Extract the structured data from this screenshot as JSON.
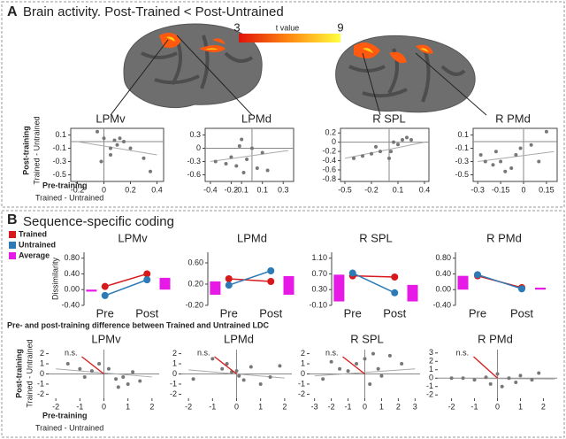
{
  "panel_a": {
    "label": "A",
    "title": "Brain activity. Post-Trained < Post-Untrained",
    "colorbar": {
      "min": 3,
      "max": 9,
      "label": "t value",
      "colors": [
        "#e0120a",
        "#ff8a10",
        "#ffff40"
      ]
    },
    "y_label": [
      "Post-training",
      "Trained - Untrained"
    ],
    "x_label": [
      "Pre-training",
      "Trained - Untrained"
    ]
  },
  "panel_b": {
    "label": "B",
    "title": "Sequence-specific coding",
    "subtitle": "Pre- and post-training difference between Trained and Untrained LDC",
    "y_label": [
      "Post-training",
      "Trained - Untrained"
    ],
    "x_label": [
      "Pre-training",
      "Trained - Untrained"
    ]
  },
  "chart_data": [
    {
      "type": "scatter",
      "title": "LPMv",
      "color": "#777777",
      "x": [
        -0.05,
        0,
        0.05,
        0.1,
        0.12,
        0.15,
        0.2,
        0.05,
        -0.02,
        0.08,
        0.3,
        0.35
      ],
      "values": [
        0.15,
        0.05,
        -0.1,
        -0.05,
        0.05,
        0,
        -0.1,
        -0.2,
        -0.3,
        0.02,
        -0.25,
        -0.45
      ],
      "fit_line": {
        "x": [
          -0.2,
          0.4
        ],
        "values": [
          0,
          -0.2
        ],
        "color": "#aaaaaa"
      },
      "xlim": [
        -0.25,
        0.45
      ],
      "ylim": [
        -0.6,
        0.2
      ],
      "xticks": [
        -0.2,
        0,
        0.2,
        0.4
      ],
      "yticks": [
        0.1,
        -0.1,
        -0.3,
        -0.5
      ]
    },
    {
      "type": "scatter",
      "title": "LPMd",
      "color": "#777777",
      "x": [
        -0.35,
        -0.25,
        -0.2,
        -0.15,
        -0.1,
        -0.08,
        -0.05,
        0,
        0.05,
        0.1,
        0.15,
        -0.12
      ],
      "values": [
        -0.3,
        -0.35,
        -0.2,
        -0.4,
        0.2,
        -0.55,
        -0.25,
        0,
        -0.45,
        -0.1,
        -0.5,
        0.05
      ],
      "fit_line": {
        "x": [
          -0.4,
          0.35
        ],
        "values": [
          -0.3,
          -0.05
        ],
        "color": "#aaaaaa"
      },
      "xlim": [
        -0.45,
        0.4
      ],
      "ylim": [
        -0.75,
        0.45
      ],
      "xticks": [
        -0.4,
        -0.2,
        -0.1,
        0.1,
        0.3
      ],
      "yticks": [
        0.3,
        0,
        -0.3,
        -0.6
      ]
    },
    {
      "type": "scatter",
      "title": "R SPL",
      "color": "#777777",
      "x": [
        -0.4,
        -0.3,
        -0.2,
        -0.15,
        -0.1,
        0,
        0.02,
        0.05,
        0.1,
        0.15,
        0.2,
        0.25
      ],
      "values": [
        -0.35,
        -0.3,
        -0.25,
        -0.1,
        -0.2,
        -0.35,
        -0.2,
        0,
        -0.05,
        0.05,
        0.1,
        0.05
      ],
      "fit_line": {
        "x": [
          -0.5,
          0.4
        ],
        "values": [
          -0.35,
          0
        ],
        "color": "#aaaaaa"
      },
      "xlim": [
        -0.55,
        0.45
      ],
      "ylim": [
        -0.85,
        0.3
      ],
      "xticks": [
        -0.5,
        -0.2,
        0.1,
        0.4
      ],
      "yticks": [
        0.2,
        0,
        -0.2,
        -0.4,
        -0.6,
        -0.8
      ]
    },
    {
      "type": "scatter",
      "title": "R PMd",
      "color": "#777777",
      "x": [
        -0.28,
        -0.25,
        -0.2,
        -0.18,
        -0.12,
        -0.08,
        -0.05,
        -0.02,
        0.05,
        0.1,
        0.15,
        -0.15
      ],
      "values": [
        -0.2,
        -0.3,
        -0.35,
        -0.15,
        -0.45,
        -0.4,
        -0.2,
        -0.1,
        -0.05,
        -0.3,
        0.15,
        -0.3
      ],
      "fit_line": {
        "x": [
          -0.3,
          0.2
        ],
        "values": [
          -0.3,
          -0.15
        ],
        "color": "#aaaaaa"
      },
      "xlim": [
        -0.33,
        0.22
      ],
      "ylim": [
        -0.6,
        0.2
      ],
      "xticks": [
        -0.3,
        -0.15,
        0,
        0.15
      ],
      "yticks": [
        0.1,
        -0.1,
        -0.3,
        -0.5
      ]
    },
    {
      "type": "line",
      "title": "LPMv",
      "y_label": "Dissimilarity",
      "categories": [
        "Pre",
        "Post"
      ],
      "series": [
        {
          "name": "Trained",
          "color": "#d7191c",
          "values": [
            0.08,
            0.4
          ]
        },
        {
          "name": "Untrained",
          "color": "#2c7bb6",
          "values": [
            -0.15,
            0.25
          ]
        },
        {
          "name": "Average",
          "type": "bar",
          "color": "#e619e6",
          "values": [
            -0.05,
            0.3
          ]
        }
      ],
      "ylim": [
        -0.4,
        0.95
      ],
      "yticks": [
        {
          "value": 0.8,
          "label": "0.80"
        },
        {
          "value": 0.4,
          "label": "0.40"
        },
        {
          "value": 0,
          "label": "0.00"
        },
        {
          "value": -0.4,
          "label": "-0.40"
        }
      ]
    },
    {
      "type": "line",
      "title": "LPMd",
      "categories": [
        "Pre",
        "Post"
      ],
      "series": [
        {
          "color": "#d7191c",
          "values": [
            0.3,
            0.25
          ]
        },
        {
          "color": "#2c7bb6",
          "values": [
            0.18,
            0.45
          ]
        },
        {
          "type": "bar",
          "color": "#e619e6",
          "values": [
            0.25,
            0.35
          ]
        }
      ],
      "ylim": [
        -0.2,
        0.8
      ],
      "yticks": [
        {
          "value": 0.6,
          "label": "0.60"
        },
        {
          "value": 0.2,
          "label": "0.20"
        },
        {
          "value": -0.2,
          "label": "-0.20"
        }
      ]
    },
    {
      "type": "line",
      "title": "R SPL",
      "categories": [
        "Pre",
        "Post"
      ],
      "series": [
        {
          "color": "#d7191c",
          "values": [
            0.65,
            0.62
          ]
        },
        {
          "color": "#2c7bb6",
          "values": [
            0.72,
            0.22
          ]
        },
        {
          "type": "bar",
          "color": "#e619e6",
          "values": [
            0.68,
            0.42
          ]
        }
      ],
      "ylim": [
        -0.1,
        1.25
      ],
      "yticks": [
        {
          "value": 1.1,
          "label": "1.10"
        },
        {
          "value": 0.7,
          "label": "0.70"
        },
        {
          "value": 0.3,
          "label": "0.30"
        },
        {
          "value": -0.1,
          "label": "-0.10"
        }
      ]
    },
    {
      "type": "line",
      "title": "R PMd",
      "categories": [
        "Pre",
        "Post"
      ],
      "series": [
        {
          "color": "#d7191c",
          "values": [
            0.35,
            0.05
          ]
        },
        {
          "color": "#2c7bb6",
          "values": [
            0.38,
            0.02
          ]
        },
        {
          "type": "bar",
          "color": "#e619e6",
          "values": [
            0.35,
            0.05
          ]
        }
      ],
      "ylim": [
        -0.4,
        0.95
      ],
      "yticks": [
        {
          "value": 0.8,
          "label": "0.80"
        },
        {
          "value": 0.4,
          "label": "0.40"
        },
        {
          "value": 0,
          "label": "0.00"
        },
        {
          "value": -0.4,
          "label": "-0.40"
        }
      ]
    },
    {
      "type": "scatter",
      "title": "LPMv",
      "annotation": "n.s.",
      "color": "#777777",
      "x": [
        -1.5,
        -1,
        -0.5,
        -0.2,
        0.2,
        0.5,
        0.8,
        1,
        1.2,
        1.5,
        0.6,
        -0.8
      ],
      "values": [
        1,
        0.5,
        0.3,
        1,
        0.5,
        -0.5,
        -0.3,
        -1,
        0.2,
        -0.7,
        -1.3,
        -0.3
      ],
      "fit_line": {
        "x": [
          -2,
          2
        ],
        "values": [
          0.5,
          -0.3
        ],
        "color": "#aaaaaa"
      },
      "xlim": [
        -2.3,
        2.3
      ],
      "ylim": [
        -2.4,
        2.4
      ],
      "xticks": [
        -2,
        -1,
        0,
        1,
        2
      ],
      "yticks": [
        2,
        1,
        0,
        -1,
        -2
      ]
    },
    {
      "type": "scatter",
      "title": "LPMd",
      "annotation": "n.s.",
      "color": "#777777",
      "x": [
        -1.8,
        -1,
        -0.6,
        -0.4,
        -0.2,
        0,
        0.1,
        0.3,
        0.6,
        1,
        1.4,
        1.8
      ],
      "values": [
        -0.5,
        1.5,
        0.5,
        1,
        0.2,
        0.3,
        -0.2,
        -0.6,
        0.7,
        -1,
        -0.3,
        0.8
      ],
      "fit_line": {
        "x": [
          -2,
          2
        ],
        "values": [
          0.4,
          -0.4
        ],
        "color": "#aaaaaa"
      },
      "xlim": [
        -2.3,
        2.3
      ],
      "ylim": [
        -2.4,
        2.4
      ],
      "xticks": [
        -2,
        -1,
        0,
        1,
        2
      ],
      "yticks": [
        2,
        1,
        0,
        -1,
        -2
      ]
    },
    {
      "type": "scatter",
      "title": "R SPL",
      "annotation": "n.s.",
      "color": "#777777",
      "x": [
        -2.5,
        -2,
        -1.5,
        -1,
        -0.5,
        0,
        0.3,
        0.5,
        0.8,
        1,
        1.5,
        2.2
      ],
      "values": [
        -0.5,
        1.2,
        0.5,
        0.3,
        1,
        1.5,
        -1,
        2,
        0.5,
        -0.2,
        1.8,
        1
      ],
      "fit_line": {
        "x": [
          -3,
          3
        ],
        "values": [
          -0.2,
          0.5
        ],
        "color": "#aaaaaa"
      },
      "xlim": [
        -3.3,
        3.3
      ],
      "ylim": [
        -2.4,
        2.4
      ],
      "xticks": [
        -3,
        -2,
        -1,
        0,
        1,
        2,
        3
      ],
      "yticks": [
        2,
        1,
        0,
        -1,
        -2
      ]
    },
    {
      "type": "scatter",
      "title": "R PMd",
      "annotation": "n.s.",
      "color": "#777777",
      "x": [
        -2,
        -1.5,
        -1,
        -0.5,
        0,
        0.2,
        0.5,
        0.8,
        1,
        1.5,
        1.8,
        -0.3
      ],
      "values": [
        0,
        0,
        -0.2,
        0.1,
        0.5,
        -1,
        0,
        -0.5,
        0.3,
        -0.2,
        0.6,
        -0.7
      ],
      "fit_line": {
        "x": [
          -2.5,
          2.5
        ],
        "values": [
          0,
          -0.1
        ],
        "color": "#aaaaaa"
      },
      "xlim": [
        -2.6,
        2.6
      ],
      "ylim": [
        -2.4,
        3.4
      ],
      "xticks": [
        -2,
        -1,
        0,
        1,
        2
      ],
      "yticks": [
        3,
        2,
        1,
        0,
        -1,
        -2
      ]
    }
  ]
}
